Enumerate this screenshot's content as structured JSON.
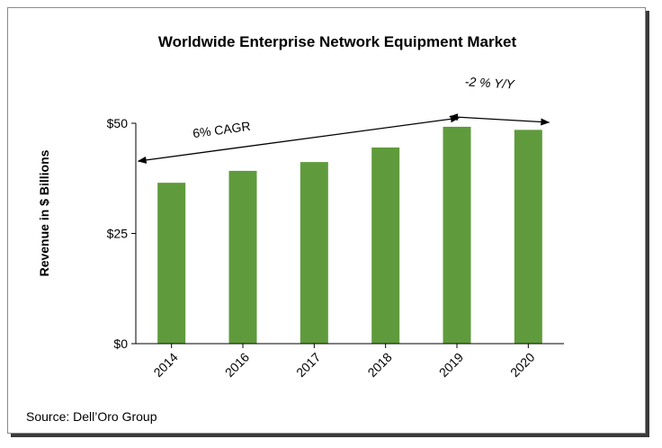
{
  "chart_data": {
    "type": "bar",
    "title": "Worldwide Enterprise Network Equipment Market",
    "ylabel": "Revenue in $ Billions",
    "xlabel": "",
    "categories": [
      "2014",
      "2016",
      "2017",
      "2018",
      "2019",
      "2020"
    ],
    "values": [
      36.5,
      39.2,
      41.2,
      44.5,
      49.2,
      48.5
    ],
    "ylim": [
      0,
      50
    ],
    "yticks": [
      0,
      25,
      50
    ],
    "ytick_labels": [
      "$0",
      "$25",
      "$50"
    ],
    "bar_color": "#5f9b3c",
    "grid": false,
    "legend": "none",
    "annotations": [
      {
        "text": "6% CAGR",
        "from_category": "2014",
        "to_category": "2019"
      },
      {
        "text": "-2 %  Y/Y",
        "from_category": "2019",
        "to_category": "2020"
      }
    ],
    "source": "Source: Dell’Oro Group"
  }
}
